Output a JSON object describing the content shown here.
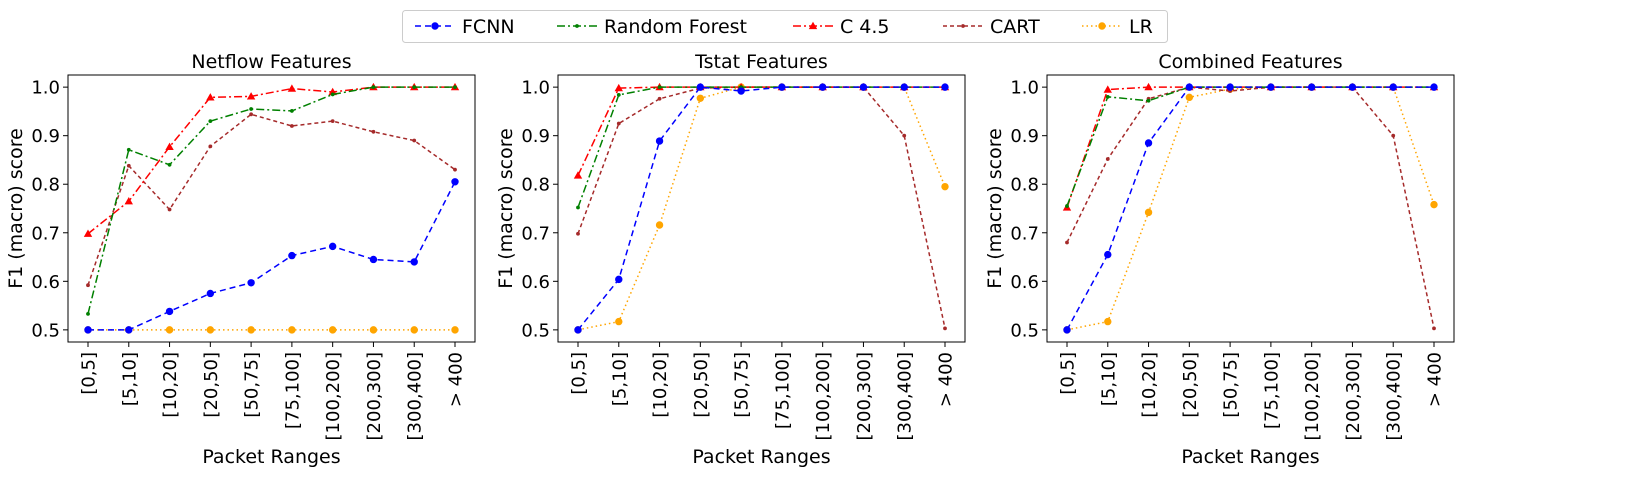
{
  "legend": {
    "items": [
      {
        "label": "FCNN",
        "color": "#0000ff",
        "dash": "6,4",
        "marker": "circle"
      },
      {
        "label": "Random Forest",
        "color": "#008000",
        "dash": "8,3,2,3",
        "marker": "dot"
      },
      {
        "label": "C 4.5",
        "color": "#ff0000",
        "dash": "8,3,2,3",
        "marker": "triangle"
      },
      {
        "label": "CART",
        "color": "#a52a2a",
        "dash": "4,3",
        "marker": "dot"
      },
      {
        "label": "LR",
        "color": "#ffa500",
        "dash": "1.5,3",
        "marker": "circle"
      }
    ]
  },
  "chart_data": [
    {
      "type": "line",
      "title": "Netflow Features",
      "xlabel": "Packet Ranges",
      "ylabel": "F1 (macro) score",
      "ylim": [
        0.475,
        1.025
      ],
      "yticks": [
        "0.5",
        "0.6",
        "0.7",
        "0.8",
        "0.9",
        "1.0"
      ],
      "categories": [
        "[0,5]",
        "[5,10]",
        "[10,20]",
        "[20,50]",
        "[50,75]",
        "[75,100]",
        "[100,200]",
        "[200,300]",
        "[300,400]",
        "> 400"
      ],
      "series": [
        {
          "name": "FCNN",
          "values": [
            0.5,
            0.5,
            0.538,
            0.575,
            0.597,
            0.653,
            0.672,
            0.645,
            0.64,
            0.805
          ]
        },
        {
          "name": "Random Forest",
          "values": [
            0.533,
            0.871,
            0.84,
            0.93,
            0.955,
            0.951,
            0.985,
            1.0,
            1.0,
            1.0
          ]
        },
        {
          "name": "C 4.5",
          "values": [
            0.698,
            0.765,
            0.877,
            0.979,
            0.981,
            0.997,
            0.99,
            1.0,
            1.0,
            1.0
          ]
        },
        {
          "name": "CART",
          "values": [
            0.592,
            0.838,
            0.748,
            0.878,
            0.944,
            0.92,
            0.93,
            0.908,
            0.89,
            0.83
          ]
        },
        {
          "name": "LR",
          "values": [
            0.5,
            0.5,
            0.5,
            0.5,
            0.5,
            0.5,
            0.5,
            0.5,
            0.5,
            0.5
          ]
        }
      ]
    },
    {
      "type": "line",
      "title": "Tstat Features",
      "xlabel": "Packet Ranges",
      "ylabel": "F1 (macro) score",
      "ylim": [
        0.475,
        1.025
      ],
      "yticks": [
        "0.5",
        "0.6",
        "0.7",
        "0.8",
        "0.9",
        "1.0"
      ],
      "categories": [
        "[0,5]",
        "[5,10]",
        "[10,20]",
        "[20,50]",
        "[50,75]",
        "[75,100]",
        "[100,200]",
        "[200,300]",
        "[300,400]",
        "> 400"
      ],
      "series": [
        {
          "name": "FCNN",
          "values": [
            0.5,
            0.604,
            0.889,
            1.0,
            0.992,
            1.0,
            1.0,
            1.0,
            1.0,
            1.0
          ]
        },
        {
          "name": "Random Forest",
          "values": [
            0.752,
            0.984,
            1.0,
            1.0,
            1.0,
            1.0,
            1.0,
            1.0,
            1.0,
            1.0
          ]
        },
        {
          "name": "C 4.5",
          "values": [
            0.818,
            0.998,
            1.0,
            1.0,
            1.0,
            1.0,
            1.0,
            1.0,
            1.0,
            1.0
          ]
        },
        {
          "name": "CART",
          "values": [
            0.698,
            0.925,
            0.976,
            0.998,
            1.0,
            1.0,
            1.0,
            1.0,
            0.9,
            0.503
          ]
        },
        {
          "name": "LR",
          "values": [
            0.5,
            0.517,
            0.716,
            0.977,
            1.0,
            1.0,
            1.0,
            1.0,
            1.0,
            0.795
          ]
        }
      ]
    },
    {
      "type": "line",
      "title": "Combined Features",
      "xlabel": "Packet Ranges",
      "ylabel": "F1 (macro) score",
      "ylim": [
        0.475,
        1.025
      ],
      "yticks": [
        "0.5",
        "0.6",
        "0.7",
        "0.8",
        "0.9",
        "1.0"
      ],
      "categories": [
        "[0,5]",
        "[5,10]",
        "[10,20]",
        "[20,50]",
        "[50,75]",
        "[75,100]",
        "[100,200]",
        "[200,300]",
        "[300,400]",
        "> 400"
      ],
      "series": [
        {
          "name": "FCNN",
          "values": [
            0.5,
            0.655,
            0.885,
            1.0,
            1.0,
            1.0,
            1.0,
            1.0,
            1.0,
            1.0
          ]
        },
        {
          "name": "Random Forest",
          "values": [
            0.755,
            0.98,
            0.972,
            1.0,
            1.0,
            1.0,
            1.0,
            1.0,
            1.0,
            1.0
          ]
        },
        {
          "name": "C 4.5",
          "values": [
            0.752,
            0.995,
            1.0,
            1.0,
            1.0,
            1.0,
            1.0,
            1.0,
            1.0,
            1.0
          ]
        },
        {
          "name": "CART",
          "values": [
            0.68,
            0.852,
            0.976,
            1.0,
            0.992,
            1.0,
            1.0,
            1.0,
            0.9,
            0.503
          ]
        },
        {
          "name": "LR",
          "values": [
            0.5,
            0.517,
            0.742,
            0.979,
            0.996,
            1.0,
            1.0,
            1.0,
            1.0,
            0.758
          ]
        }
      ]
    }
  ]
}
